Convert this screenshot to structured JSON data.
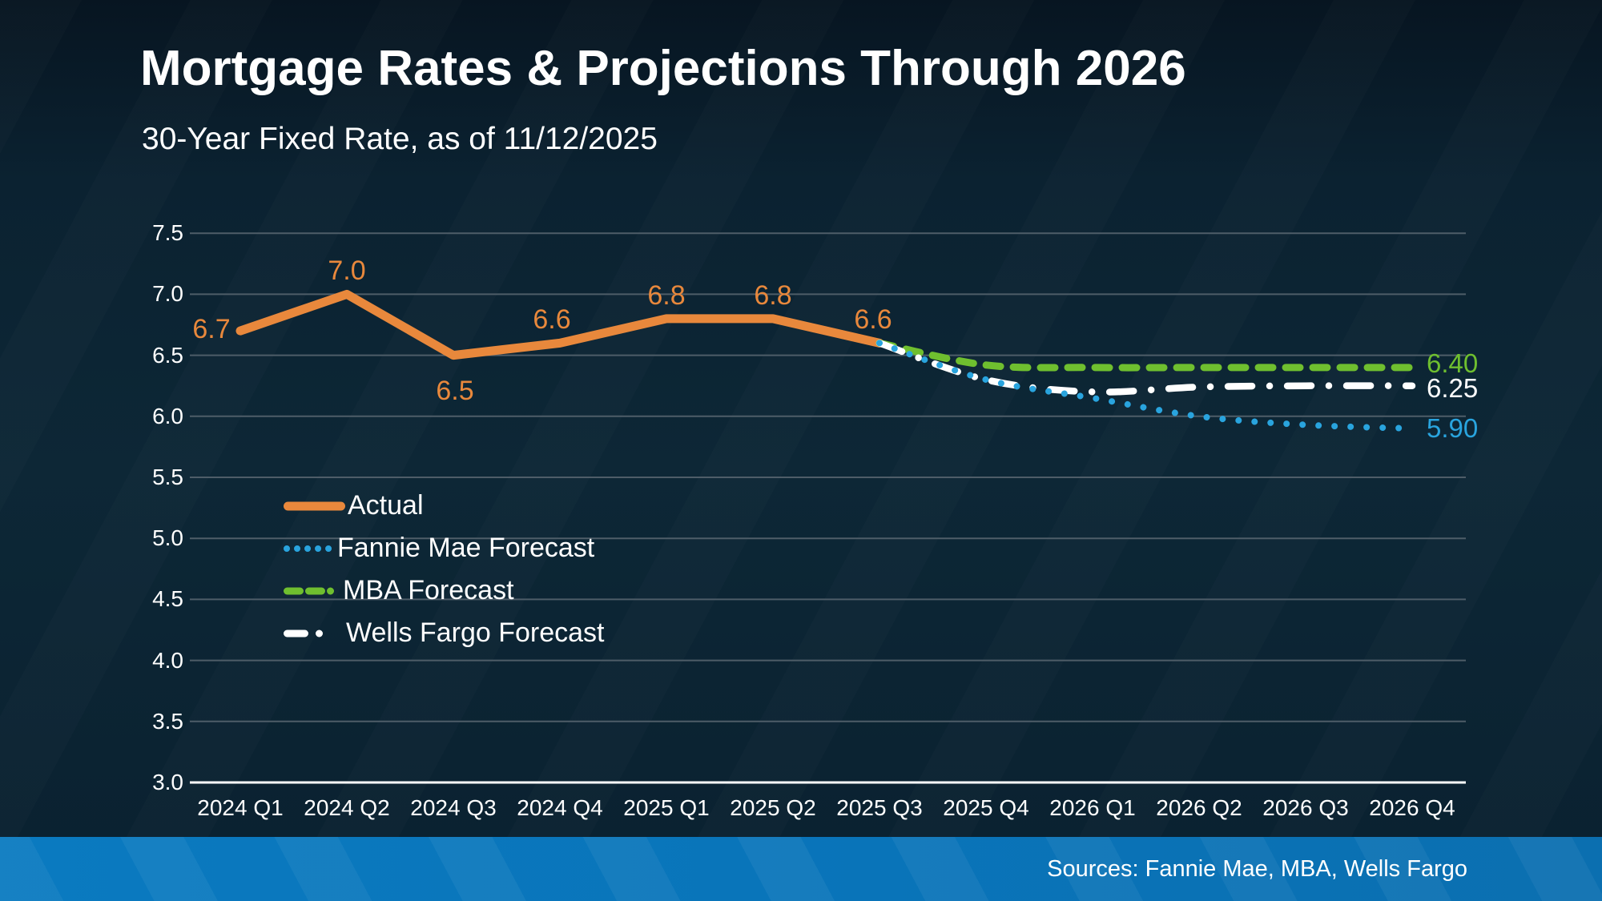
{
  "header": {
    "title": "Mortgage Rates & Projections Through 2026",
    "subtitle": "30-Year Fixed Rate, as of 11/12/2025"
  },
  "footer": {
    "sources": "Sources: Fannie Mae, MBA, Wells Fargo"
  },
  "colors": {
    "background": "#0c2534",
    "gridline": "#4e5d68",
    "axis_line": "#ffffff",
    "text": "#ffffff",
    "footer_bar": "#0a74b8",
    "actual": "#e8883c",
    "fannie_mae": "#29a4de",
    "mba": "#6fbf2f",
    "wells_fargo": "#ffffff"
  },
  "chart_data": {
    "type": "line",
    "title": "Mortgage Rates & Projections Through 2026",
    "subtitle": "30-Year Fixed Rate, as of 11/12/2025",
    "xlabel": "",
    "ylabel": "",
    "ylim": [
      3.0,
      7.5
    ],
    "grid": true,
    "legend_position": "inside-left",
    "categories": [
      "2024 Q1",
      "2024 Q2",
      "2024 Q3",
      "2024 Q4",
      "2025 Q1",
      "2025 Q2",
      "2025 Q3",
      "2025 Q4",
      "2026 Q1",
      "2026 Q2",
      "2026 Q3",
      "2026 Q4"
    ],
    "y_axis": {
      "min": 3.0,
      "max": 7.5,
      "step": 0.5,
      "tick_labels": [
        "7.5",
        "7.0",
        "6.5",
        "6.0",
        "5.5",
        "5.0",
        "4.5",
        "4.0",
        "3.5",
        "3.0"
      ]
    },
    "series": [
      {
        "name": "Actual",
        "color": "#e8883c",
        "style": "solid",
        "x_start_index": 0,
        "values": [
          6.7,
          7.0,
          6.5,
          6.6,
          6.8,
          6.8,
          6.6
        ],
        "point_labels": [
          "6.7",
          "7.0",
          "6.5",
          "6.6",
          "6.8",
          "6.8",
          "6.6"
        ]
      },
      {
        "name": "Fannie Mae Forecast",
        "color": "#29a4de",
        "style": "dotted",
        "x_start_index": 6,
        "values": [
          6.6,
          6.3,
          6.15,
          6.0,
          5.93,
          5.9
        ],
        "end_label": "5.90"
      },
      {
        "name": "MBA Forecast",
        "color": "#6fbf2f",
        "style": "dashed",
        "x_start_index": 6,
        "values": [
          6.6,
          6.42,
          6.4,
          6.4,
          6.4,
          6.4
        ],
        "end_label": "6.40"
      },
      {
        "name": "Wells Fargo Forecast",
        "color": "#ffffff",
        "style": "dashdot",
        "x_start_index": 6,
        "values": [
          6.6,
          6.3,
          6.2,
          6.24,
          6.25,
          6.25
        ],
        "end_label": "6.25"
      }
    ],
    "legend_order": [
      0,
      1,
      2,
      3
    ]
  }
}
